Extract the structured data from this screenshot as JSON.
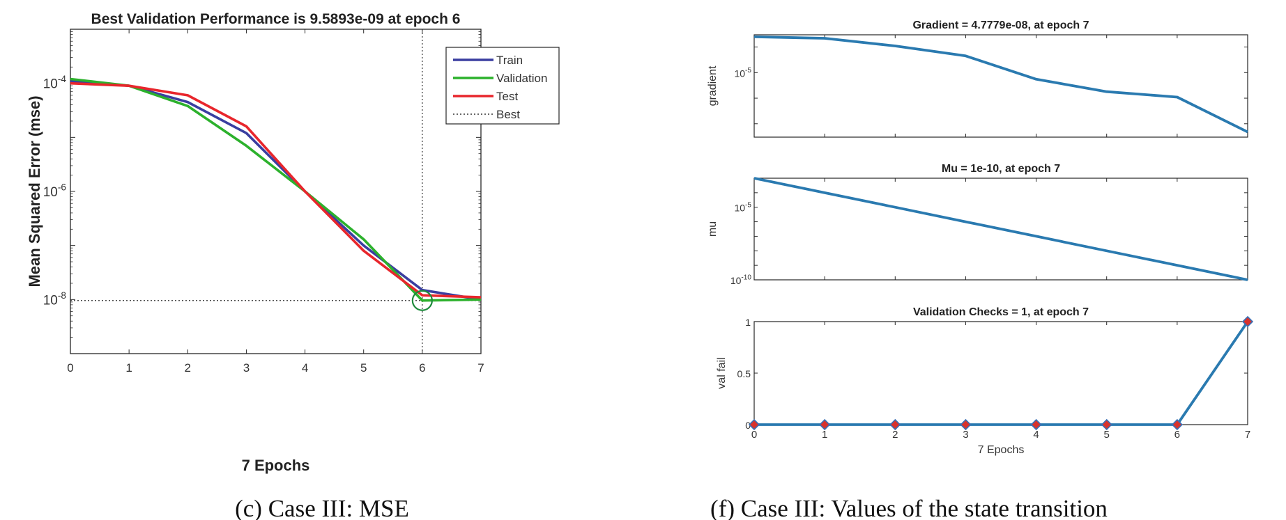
{
  "chart_data": [
    {
      "type": "line",
      "title": "Best Validation Performance is 9.5893e-09 at epoch 6",
      "xlabel": "7 Epochs",
      "ylabel": "Mean Squared Error  (mse)",
      "yscale": "log",
      "xlim": [
        0,
        7
      ],
      "ylim": [
        1e-09,
        0.001
      ],
      "xticks": [
        "0",
        "1",
        "2",
        "3",
        "4",
        "5",
        "6",
        "7"
      ],
      "yticks": [
        {
          "value": 0.0001,
          "base": "10",
          "exp": "-4"
        },
        {
          "value": 1e-06,
          "base": "10",
          "exp": "-6"
        },
        {
          "value": 1e-08,
          "base": "10",
          "exp": "-8"
        }
      ],
      "x": [
        0,
        1,
        2,
        3,
        4,
        5,
        6,
        7
      ],
      "series": [
        {
          "name": "Train",
          "color": "#3a3ea0",
          "values": [
            0.00011,
            9e-05,
            4.5e-05,
            1.2e-05,
            1e-06,
            1e-07,
            1.5e-08,
            1e-08
          ]
        },
        {
          "name": "Validation",
          "color": "#2cb12c",
          "values": [
            0.00012,
            9e-05,
            3.8e-05,
            7e-06,
            1e-06,
            1.3e-07,
            9.6e-09,
            1e-08
          ]
        },
        {
          "name": "Test",
          "color": "#e8262c",
          "values": [
            0.0001,
            9e-05,
            6e-05,
            1.6e-05,
            1e-06,
            8e-08,
            1.2e-08,
            1.1e-08
          ]
        }
      ],
      "best": {
        "name": "Best",
        "epoch": 6,
        "value": 9.5893e-09,
        "marker_color": "#1e8a3c"
      },
      "legend": "top-right",
      "caption": "(c) Case III: MSE"
    },
    {
      "type": "line",
      "title": "Gradient = 4.7779e-08, at epoch 7",
      "ylabel": "gradient",
      "yscale": "log",
      "xlim": [
        0,
        7
      ],
      "ylim": [
        3e-08,
        0.0003
      ],
      "yticks": [
        {
          "value": 1e-05,
          "base": "10",
          "exp": "-5"
        }
      ],
      "x": [
        0,
        1,
        2,
        3,
        4,
        5,
        6,
        7
      ],
      "values": [
        0.00025,
        0.00022,
        0.00011,
        4.5e-05,
        5.5e-06,
        1.8e-06,
        1.1e-06,
        4.7779e-08
      ],
      "color": "#2a7ab0"
    },
    {
      "type": "line",
      "title": "Mu = 1e-10, at epoch 7",
      "ylabel": "mu",
      "yscale": "log",
      "xlim": [
        0,
        7
      ],
      "ylim": [
        1e-10,
        0.001
      ],
      "yticks": [
        {
          "value": 1e-05,
          "base": "10",
          "exp": "-5"
        },
        {
          "value": 1e-10,
          "base": "10",
          "exp": "-10"
        }
      ],
      "x": [
        0,
        1,
        2,
        3,
        4,
        5,
        6,
        7
      ],
      "values": [
        0.001,
        0.0001,
        1e-05,
        1e-06,
        1e-07,
        1e-08,
        1e-09,
        1e-10
      ],
      "color": "#2a7ab0"
    },
    {
      "type": "line",
      "title": "Validation Checks = 1, at epoch 7",
      "xlabel": "7 Epochs",
      "ylabel": "val fail",
      "xlim": [
        0,
        7
      ],
      "ylim": [
        0,
        1
      ],
      "xticks": [
        "0",
        "1",
        "2",
        "3",
        "4",
        "5",
        "6",
        "7"
      ],
      "yticks": [
        "0",
        "0.5",
        "1"
      ],
      "x": [
        0,
        1,
        2,
        3,
        4,
        5,
        6,
        7
      ],
      "values": [
        0,
        0,
        0,
        0,
        0,
        0,
        0,
        1
      ],
      "color": "#2a7ab0",
      "marker_edge": "#3a6fb5",
      "marker_fill": "#d8322c",
      "caption": "(f) Case III: Values of the state transition"
    }
  ]
}
